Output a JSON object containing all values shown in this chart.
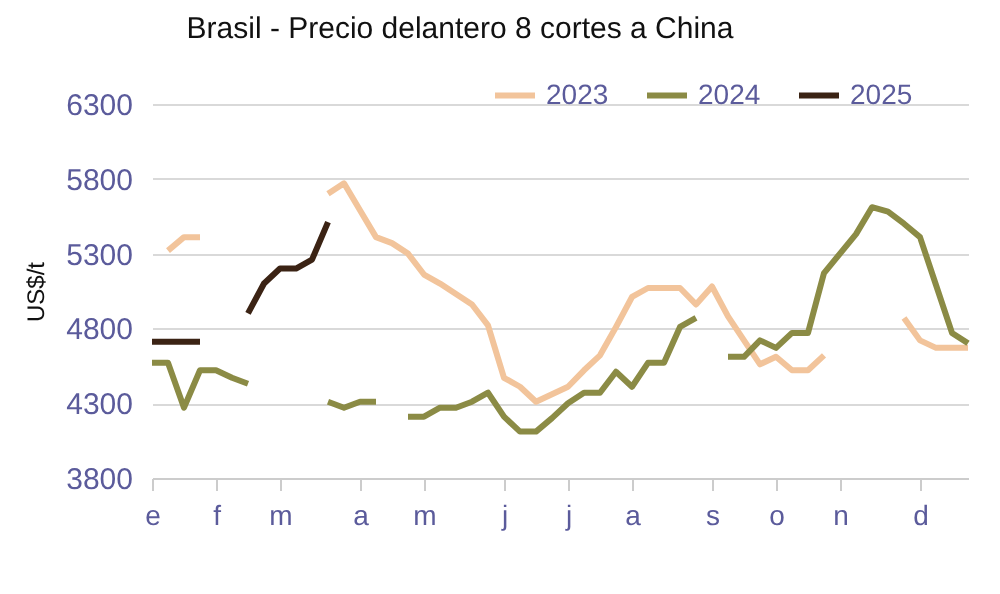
{
  "chart_data": {
    "type": "line",
    "title": "Brasil - Precio delantero 8 cortes a China",
    "ylabel": "US$/t",
    "categories": [
      "e",
      null,
      null,
      null,
      "f",
      null,
      null,
      null,
      "m",
      null,
      null,
      null,
      null,
      "a",
      null,
      null,
      null,
      "m",
      null,
      null,
      null,
      null,
      "j",
      null,
      null,
      null,
      "j",
      null,
      null,
      null,
      "a",
      null,
      null,
      null,
      null,
      "s",
      null,
      null,
      null,
      "o",
      null,
      null,
      null,
      "n",
      null,
      null,
      null,
      null,
      "d",
      null,
      null,
      null
    ],
    "series": [
      {
        "name": "2023",
        "color": "#f2c49b",
        "values": [
          null,
          5320,
          5410,
          5410,
          null,
          null,
          null,
          null,
          null,
          null,
          null,
          5700,
          5770,
          5590,
          5410,
          5370,
          5300,
          5160,
          5100,
          5030,
          4960,
          4820,
          4470,
          4410,
          4310,
          4360,
          4410,
          4520,
          4620,
          4810,
          5010,
          5070,
          5070,
          5070,
          4960,
          5080,
          4880,
          4720,
          4560,
          4610,
          4520,
          4520,
          4620,
          null,
          null,
          null,
          null,
          4870,
          4720,
          4670,
          4670,
          4670
        ]
      },
      {
        "name": "2024",
        "color": "#8b8b45",
        "values": [
          4570,
          4570,
          4270,
          4520,
          4520,
          4470,
          4430,
          null,
          null,
          null,
          null,
          4310,
          4270,
          4310,
          4310,
          null,
          4210,
          4210,
          4270,
          4270,
          4310,
          4370,
          4210,
          4110,
          4110,
          4200,
          4300,
          4370,
          4370,
          4510,
          4410,
          4570,
          4570,
          4810,
          4870,
          null,
          4610,
          4610,
          4720,
          4670,
          4770,
          4770,
          5170,
          5300,
          5430,
          5610,
          5580,
          5500,
          5410,
          5090,
          4770,
          4700
        ]
      },
      {
        "name": "2025",
        "color": "#3b2314",
        "values": [
          4710,
          4710,
          4710,
          4710,
          null,
          null,
          4900,
          5100,
          5200,
          5200,
          5260,
          5510,
          null,
          null,
          null,
          null,
          null,
          null,
          null,
          null,
          null,
          null,
          null,
          null,
          null,
          null,
          null,
          null,
          null,
          null,
          null,
          null,
          null,
          null,
          null,
          null,
          null,
          null,
          null,
          null,
          null,
          null,
          null,
          null,
          null,
          null,
          null,
          null,
          null,
          null,
          null,
          null
        ]
      }
    ],
    "ylim": [
      3800,
      6300
    ],
    "yticks": [
      3800,
      4300,
      4800,
      5300,
      5800,
      6300
    ],
    "grid": "y",
    "legend": "top right",
    "line_style": "solid",
    "marker": "none"
  }
}
